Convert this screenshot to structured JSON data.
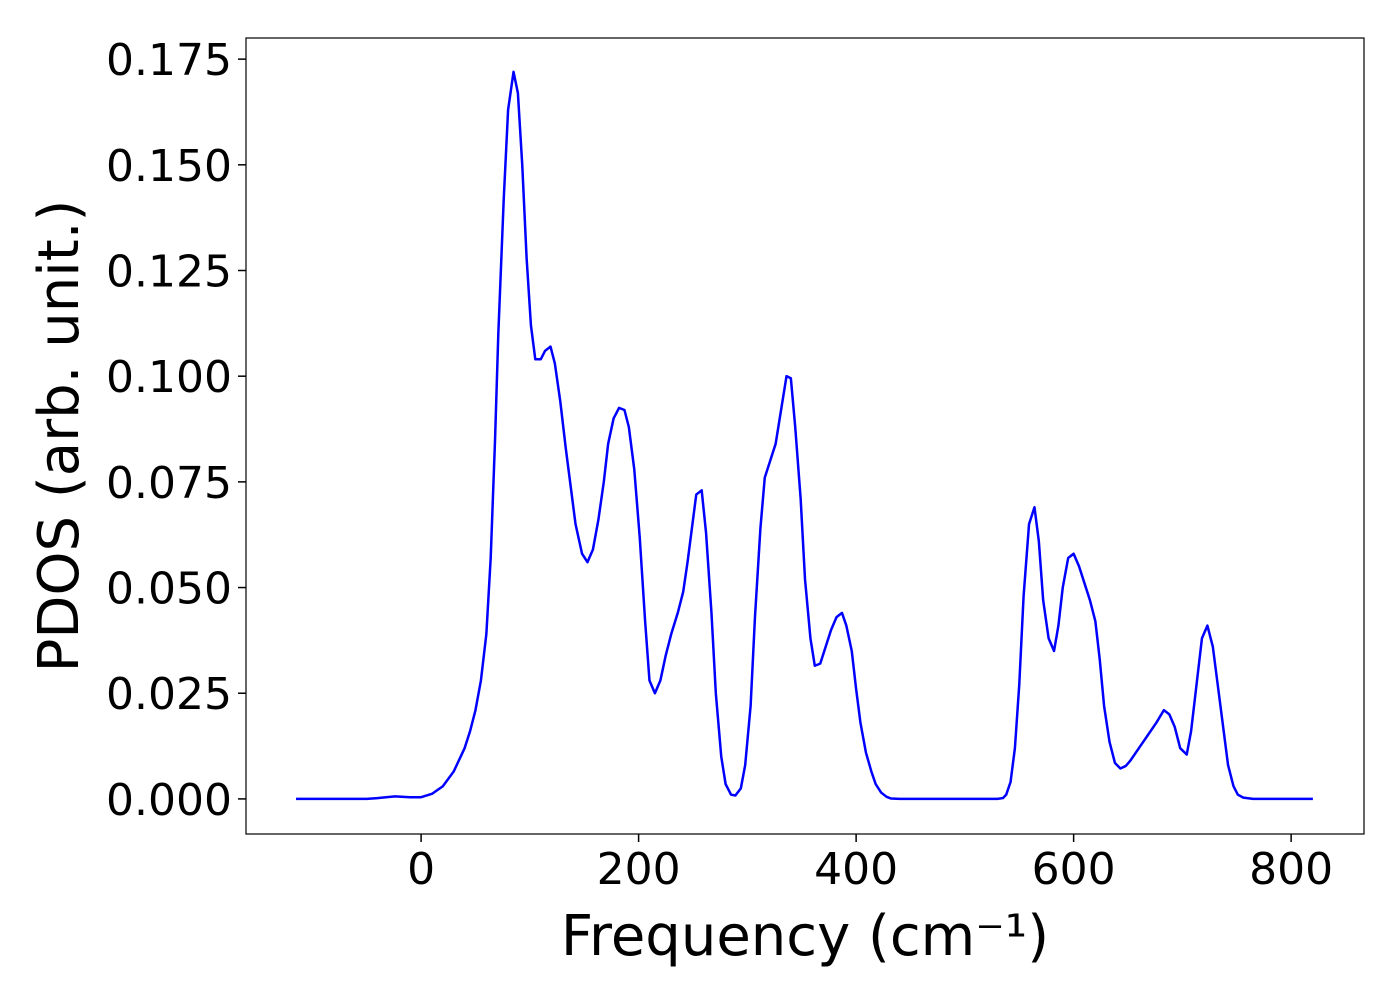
{
  "chart_data": {
    "type": "line",
    "x_label": "Frequency (cm⁻¹)",
    "y_label": "PDOS (arb. unit.)",
    "x": [
      -115,
      -50,
      -40,
      -24,
      -10,
      0,
      10,
      20,
      30,
      40,
      45,
      50,
      55,
      60,
      64,
      68,
      71,
      76,
      80,
      85,
      89,
      93,
      97,
      101,
      105,
      110,
      114,
      119,
      123,
      128,
      133,
      138,
      142,
      148,
      153,
      158,
      163,
      168,
      172,
      177,
      182,
      187,
      191,
      196,
      201,
      206,
      210,
      215,
      220,
      225,
      230,
      236,
      241,
      245,
      249,
      253,
      258,
      262,
      267,
      271,
      276,
      280,
      285,
      289,
      294,
      298,
      303,
      307,
      312,
      316,
      321,
      326,
      331,
      336,
      340,
      344,
      349,
      353,
      358,
      362,
      367,
      372,
      377,
      382,
      387,
      391,
      396,
      400,
      404,
      409,
      414,
      418,
      423,
      428,
      432,
      440,
      530,
      535,
      538,
      542,
      546,
      550,
      554,
      559,
      564,
      568,
      572,
      577,
      582,
      586,
      590,
      595,
      600,
      605,
      610,
      615,
      620,
      624,
      628,
      633,
      638,
      643,
      648,
      652,
      660,
      668,
      676,
      683,
      688,
      693,
      698,
      704,
      708,
      713,
      718,
      723,
      728,
      733,
      738,
      742,
      747,
      751,
      756,
      765,
      820
    ],
    "series": [
      {
        "name": "PDOS",
        "color": "#0000ff",
        "values": [
          0,
          0,
          0.0002,
          0.0006,
          0.0004,
          0.0004,
          0.0012,
          0.003,
          0.0065,
          0.012,
          0.016,
          0.021,
          0.028,
          0.039,
          0.057,
          0.085,
          0.11,
          0.142,
          0.163,
          0.172,
          0.167,
          0.15,
          0.128,
          0.112,
          0.104,
          0.104,
          0.106,
          0.107,
          0.103,
          0.094,
          0.083,
          0.073,
          0.065,
          0.058,
          0.056,
          0.059,
          0.066,
          0.075,
          0.084,
          0.09,
          0.0925,
          0.092,
          0.088,
          0.078,
          0.062,
          0.042,
          0.028,
          0.025,
          0.028,
          0.034,
          0.039,
          0.044,
          0.049,
          0.056,
          0.064,
          0.072,
          0.073,
          0.063,
          0.044,
          0.025,
          0.01,
          0.0035,
          0.001,
          0.0008,
          0.0025,
          0.008,
          0.022,
          0.043,
          0.064,
          0.076,
          0.08,
          0.084,
          0.092,
          0.1,
          0.0995,
          0.088,
          0.071,
          0.052,
          0.038,
          0.0315,
          0.032,
          0.036,
          0.04,
          0.043,
          0.044,
          0.041,
          0.035,
          0.026,
          0.018,
          0.011,
          0.0065,
          0.0035,
          0.0015,
          0.0005,
          0.0001,
          0,
          0,
          0.0002,
          0.001,
          0.004,
          0.012,
          0.027,
          0.048,
          0.065,
          0.069,
          0.061,
          0.047,
          0.038,
          0.035,
          0.041,
          0.05,
          0.057,
          0.058,
          0.055,
          0.051,
          0.047,
          0.042,
          0.033,
          0.022,
          0.0135,
          0.0085,
          0.0072,
          0.0078,
          0.009,
          0.012,
          0.015,
          0.018,
          0.021,
          0.02,
          0.017,
          0.012,
          0.0105,
          0.016,
          0.027,
          0.038,
          0.041,
          0.036,
          0.026,
          0.016,
          0.008,
          0.003,
          0.001,
          0.0003,
          0,
          0
        ]
      }
    ],
    "xlim": [
      -161,
      867
    ],
    "ylim": [
      -0.0083,
      0.18
    ],
    "xticks": [
      0,
      200,
      400,
      600,
      800
    ],
    "yticks": [
      {
        "value": 0,
        "label": "0.000"
      },
      0.025,
      {
        "value": 0.05,
        "label": "0.050"
      },
      0.075,
      {
        "value": 0.1,
        "label": "0.100"
      },
      0.125,
      {
        "value": 0.15,
        "label": "0.150"
      },
      0.175
    ]
  }
}
